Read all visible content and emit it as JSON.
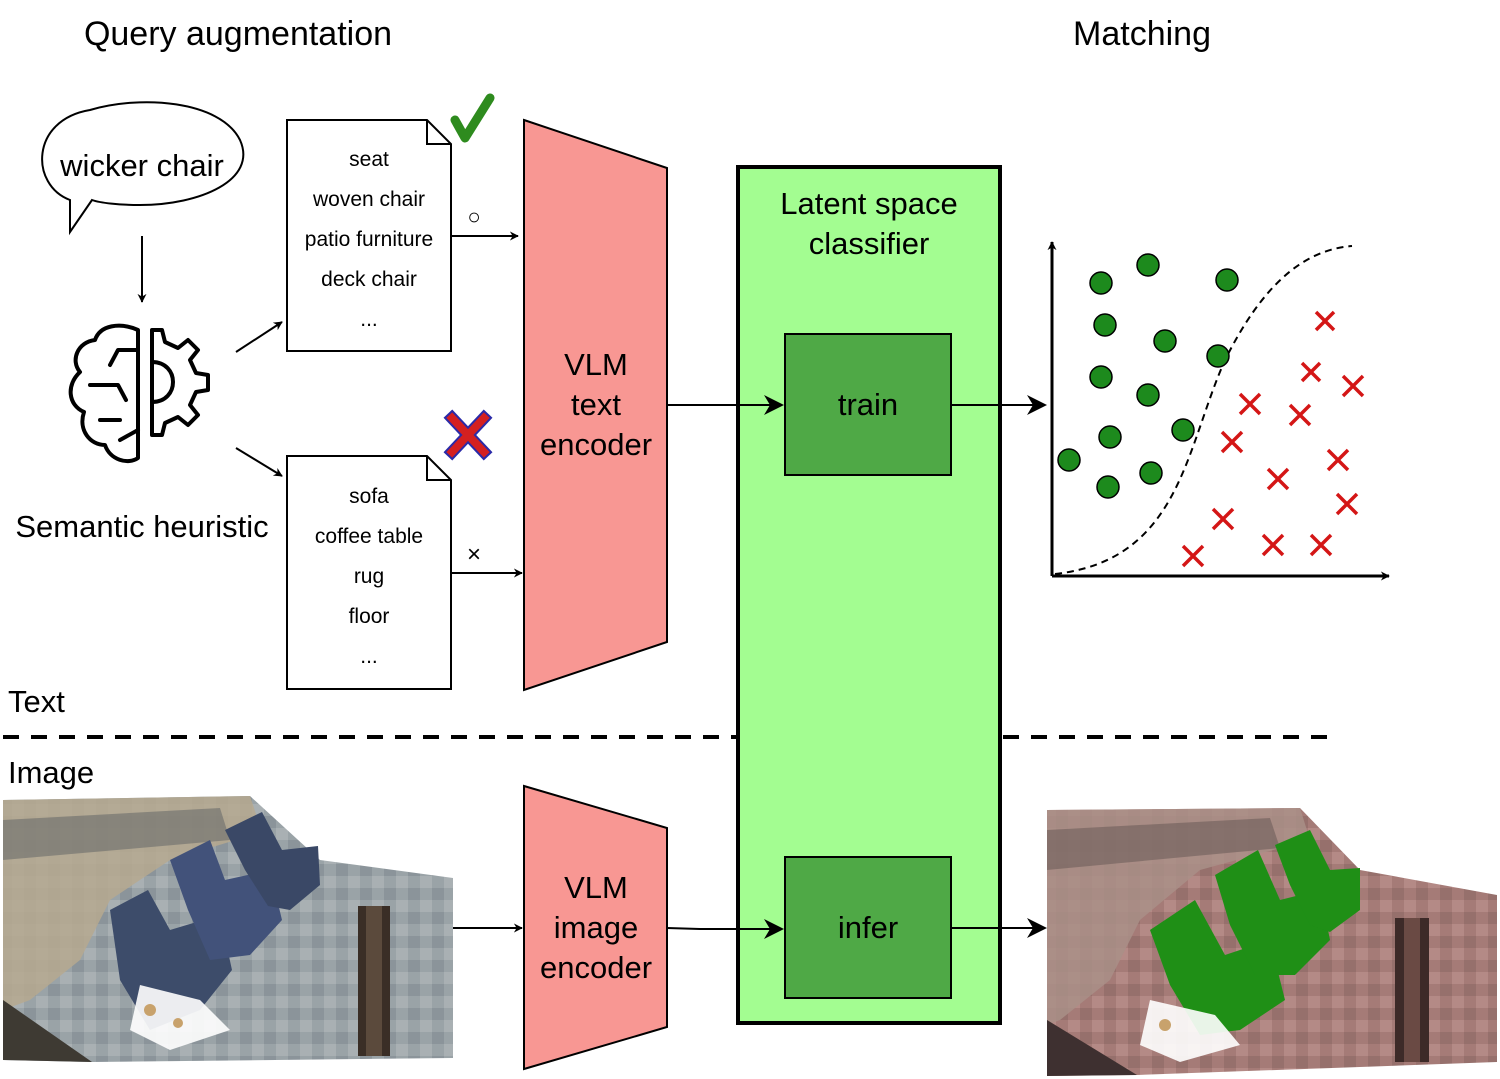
{
  "headings": {
    "query_augmentation": "Query augmentation",
    "matching": "Matching"
  },
  "query": {
    "text": "wicker chair"
  },
  "heuristic": {
    "label": "Semantic heuristic",
    "icon": "brain-gear-icon"
  },
  "positive_doc": {
    "items": [
      "seat",
      "woven chair",
      "patio furniture",
      "deck chair",
      "..."
    ],
    "marker": "○",
    "status_icon": "checkmark-icon",
    "status_color": "#2e8b1e"
  },
  "negative_doc": {
    "items": [
      "sofa",
      "coffee table",
      "rug",
      "floor",
      "..."
    ],
    "marker": "×",
    "status_icon": "cross-icon",
    "status_color": "#d42020"
  },
  "text_encoder": {
    "lines": [
      "VLM",
      "text",
      "encoder"
    ]
  },
  "image_encoder": {
    "lines": [
      "VLM",
      "image",
      "encoder"
    ]
  },
  "classifier": {
    "title_lines": [
      "Latent space",
      "classifier"
    ],
    "train_label": "train",
    "infer_label": "infer"
  },
  "section_labels": {
    "text": "Text",
    "image": "Image"
  },
  "colors": {
    "encoder_fill": "#f89793",
    "classifier_fill": "#a3fd91",
    "inner_box_fill": "#4fa946",
    "positive_point": "#1d8a1d",
    "negative_point": "#d41616",
    "segment_highlight": "#1f8f16"
  }
}
